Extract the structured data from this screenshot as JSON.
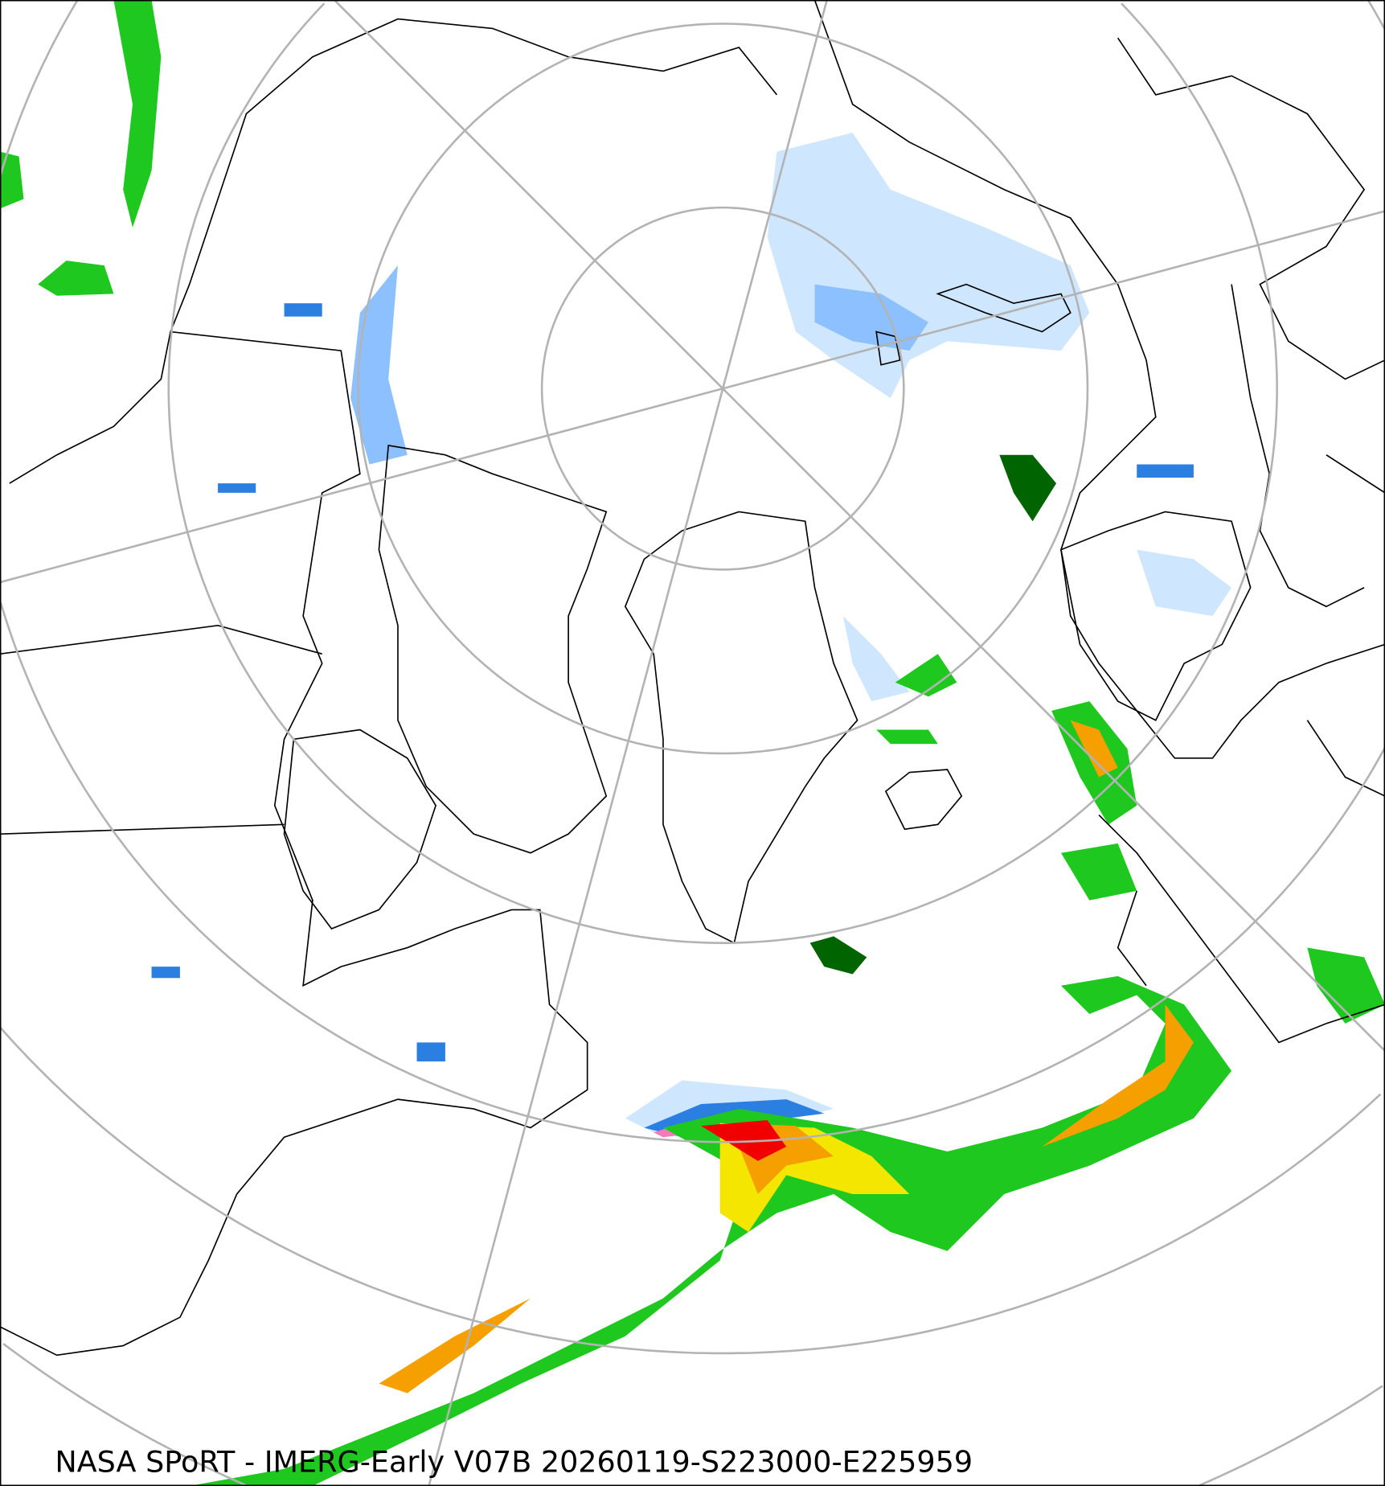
{
  "caption": "NASA SPoRT - IMERG-Early V07B 20260119-S223000-E225959",
  "projection": "north-polar-stereographic",
  "colors": {
    "graticule": "#b3b3b3",
    "coastline": "#000000",
    "snow_light": "#cfe6ff",
    "snow_mid": "#8cc0ff",
    "snow_heavy": "#2a7fe0",
    "snow_pink": "#f47ab8",
    "rain_darkgreen": "#006400",
    "rain_green": "#1ec81e",
    "rain_lightgreen": "#96f03c",
    "rain_yellow": "#f5e600",
    "rain_orange": "#f5a000",
    "rain_red": "#f00000"
  }
}
